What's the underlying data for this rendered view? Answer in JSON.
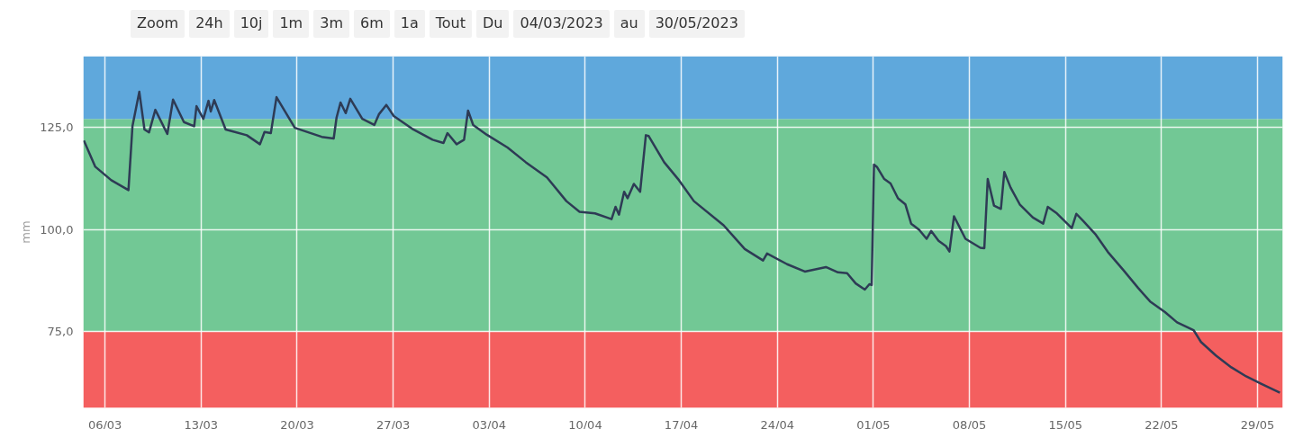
{
  "chart_data": {
    "type": "line",
    "ylabel": "mm",
    "annotations": [
      "Zoom",
      "24h",
      "10j",
      "1m",
      "3m",
      "6m",
      "1a",
      "Tout",
      "Du",
      "04/03/2023",
      "au",
      "30/05/2023"
    ],
    "xlim": [
      "2023-03-04T10:00",
      "2023-05-30T20:00"
    ],
    "ylim": [
      56.4,
      142.3
    ],
    "yticks": [
      {
        "value": 75,
        "label": "75,0"
      },
      {
        "value": 100,
        "label": "100,0"
      },
      {
        "value": 125,
        "label": "125,0"
      }
    ],
    "xticks": [
      {
        "value": "2023-03-06",
        "label": "06/03"
      },
      {
        "value": "2023-03-13",
        "label": "13/03"
      },
      {
        "value": "2023-03-20",
        "label": "20/03"
      },
      {
        "value": "2023-03-27",
        "label": "27/03"
      },
      {
        "value": "2023-04-03",
        "label": "03/04"
      },
      {
        "value": "2023-04-10",
        "label": "10/04"
      },
      {
        "value": "2023-04-17",
        "label": "17/04"
      },
      {
        "value": "2023-04-24",
        "label": "24/04"
      },
      {
        "value": "2023-05-01",
        "label": "01/05"
      },
      {
        "value": "2023-05-08",
        "label": "08/05"
      },
      {
        "value": "2023-05-15",
        "label": "15/05"
      },
      {
        "value": "2023-05-22",
        "label": "22/05"
      },
      {
        "value": "2023-05-29",
        "label": "29/05"
      }
    ],
    "grid": true,
    "line_style": "solid",
    "bands": [
      {
        "axis": "y",
        "from": 56.4,
        "to": 75,
        "color": "#f45f5f"
      },
      {
        "axis": "y",
        "from": 75,
        "to": 127,
        "color": "#72c895"
      },
      {
        "axis": "y",
        "from": 127,
        "to": 142.3,
        "color": "#5fa8dc"
      }
    ],
    "series": [
      {
        "color": "#2e3b55",
        "x": [
          "2023-03-04T11:00",
          "2023-03-05T07:00",
          "2023-03-06T11:00",
          "2023-03-07T17:00",
          "2023-03-08T00:00",
          "2023-03-08T12:00",
          "2023-03-08T21:00",
          "2023-03-09T05:00",
          "2023-03-09T16:00",
          "2023-03-10T13:00",
          "2023-03-10T23:00",
          "2023-03-11T18:00",
          "2023-03-12T12:00",
          "2023-03-12T16:00",
          "2023-03-13T04:00",
          "2023-03-13T13:00",
          "2023-03-13T17:00",
          "2023-03-13T23:00",
          "2023-03-14T19:00",
          "2023-03-16T08:00",
          "2023-03-17T07:00",
          "2023-03-17T15:00",
          "2023-03-18T02:00",
          "2023-03-18T12:00",
          "2023-03-19T20:00",
          "2023-03-21T19:00",
          "2023-03-22T16:00",
          "2023-03-22T21:00",
          "2023-03-23T04:00",
          "2023-03-23T13:00",
          "2023-03-23T21:00",
          "2023-03-24T18:00",
          "2023-03-25T15:00",
          "2023-03-25T23:00",
          "2023-03-26T12:00",
          "2023-03-27T01:00",
          "2023-03-28T09:00",
          "2023-03-29T21:00",
          "2023-03-30T16:00",
          "2023-03-30T23:00",
          "2023-03-31T15:00",
          "2023-04-01T04:00",
          "2023-04-01T11:00",
          "2023-04-01T20:00",
          "2023-04-02T20:00",
          "2023-04-04T08:00",
          "2023-04-05T16:00",
          "2023-04-07T05:00",
          "2023-04-08T15:00",
          "2023-04-09T14:00",
          "2023-04-10T17:00",
          "2023-04-11T22:00",
          "2023-04-12T05:00",
          "2023-04-12T11:00",
          "2023-04-12T20:00",
          "2023-04-13T02:00",
          "2023-04-13T13:00",
          "2023-04-14T00:00",
          "2023-04-14T10:00",
          "2023-04-14T15:00",
          "2023-04-15T18:00",
          "2023-04-16T20:00",
          "2023-04-17T22:00",
          "2023-04-20T02:00",
          "2023-04-21T15:00",
          "2023-04-22T23:00",
          "2023-04-23T06:00",
          "2023-04-24T17:00",
          "2023-04-26T00:00",
          "2023-04-27T13:00",
          "2023-04-28T10:00",
          "2023-04-29T02:00",
          "2023-04-29T17:00",
          "2023-04-30T09:00",
          "2023-04-30T17:00",
          "2023-04-30T21:00",
          "2023-05-01T01:00",
          "2023-05-01T06:00",
          "2023-05-01T19:00",
          "2023-05-02T06:00",
          "2023-05-02T19:00",
          "2023-05-03T08:00",
          "2023-05-03T18:00",
          "2023-05-04T08:00",
          "2023-05-04T21:00",
          "2023-05-05T05:00",
          "2023-05-05T18:00",
          "2023-05-06T07:00",
          "2023-05-06T13:00",
          "2023-05-06T21:00",
          "2023-05-07T17:00",
          "2023-05-08T19:00",
          "2023-05-09T02:00",
          "2023-05-09T08:00",
          "2023-05-09T19:00",
          "2023-05-10T07:00",
          "2023-05-10T13:00",
          "2023-05-11T00:00",
          "2023-05-11T16:00",
          "2023-05-12T15:00",
          "2023-05-13T09:00",
          "2023-05-13T17:00",
          "2023-05-14T09:00",
          "2023-05-15T11:00",
          "2023-05-15T19:00",
          "2023-05-16T08:00",
          "2023-05-17T05:00",
          "2023-05-18T02:00",
          "2023-05-19T05:00",
          "2023-05-20T07:00",
          "2023-05-21T04:00",
          "2023-05-22T06:00",
          "2023-05-23T03:00",
          "2023-05-24T08:00",
          "2023-05-24T21:00",
          "2023-05-25T23:00",
          "2023-05-27T02:00",
          "2023-05-28T04:00",
          "2023-05-29T06:00",
          "2023-05-30T15:00"
        ],
        "values": [
          121.7,
          115.3,
          112.0,
          109.6,
          125.2,
          133.6,
          124.4,
          123.7,
          129.2,
          123.3,
          131.7,
          126.2,
          125.2,
          130.1,
          127.0,
          131.4,
          128.8,
          131.6,
          124.4,
          123.0,
          120.8,
          123.8,
          123.5,
          132.3,
          124.8,
          122.6,
          122.2,
          127.3,
          131.0,
          128.4,
          131.9,
          127.0,
          125.5,
          128.1,
          130.4,
          127.7,
          124.6,
          121.9,
          121.1,
          123.5,
          120.8,
          121.9,
          129.0,
          125.5,
          123.1,
          120.0,
          116.4,
          112.7,
          106.9,
          104.3,
          103.9,
          102.5,
          105.5,
          103.6,
          109.2,
          107.6,
          111.1,
          109.2,
          123.0,
          122.8,
          116.4,
          112.0,
          106.9,
          101.0,
          95.2,
          92.4,
          94.1,
          91.5,
          89.7,
          90.8,
          89.5,
          89.3,
          86.8,
          85.3,
          86.6,
          86.4,
          115.8,
          115.3,
          112.3,
          111.2,
          107.6,
          106.1,
          101.4,
          99.9,
          97.7,
          99.6,
          97.2,
          95.9,
          94.6,
          103.2,
          97.7,
          95.5,
          95.4,
          112.3,
          105.8,
          105.0,
          114.0,
          110.2,
          106.1,
          102.9,
          101.4,
          105.5,
          103.9,
          100.3,
          103.8,
          101.9,
          98.7,
          94.5,
          90.1,
          85.7,
          82.4,
          79.8,
          77.3,
          75.4,
          72.5,
          69.2,
          66.3,
          64.1,
          62.3,
          60.1
        ]
      }
    ]
  }
}
